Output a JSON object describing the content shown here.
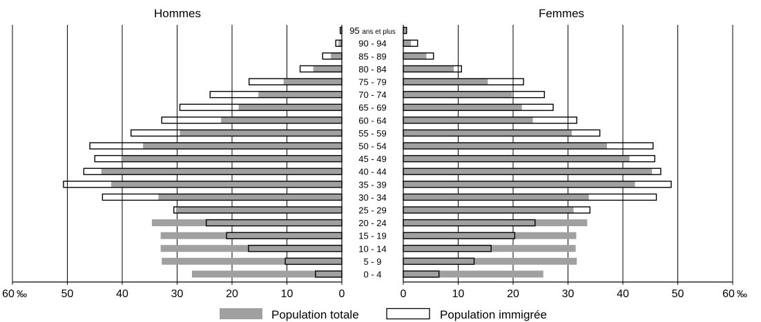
{
  "chart_data": {
    "type": "bar",
    "orientation": "horizontal",
    "subtype": "population-pyramid",
    "panels": [
      {
        "key": "men",
        "title": "Hommes"
      },
      {
        "key": "women",
        "title": "Femmes"
      }
    ],
    "categories": [
      "0 - 4",
      "5 - 9",
      "10 - 14",
      "15 - 19",
      "20 - 24",
      "25 - 29",
      "30 - 34",
      "35 - 39",
      "40 - 44",
      "45 - 49",
      "50 - 54",
      "55 - 59",
      "60 - 64",
      "65 - 69",
      "70 - 74",
      "75 - 79",
      "80 - 84",
      "85 - 89",
      "90 - 94"
    ],
    "top_category": {
      "number": "95",
      "suffix": "ans et plus"
    },
    "series": [
      {
        "name": "Population totale",
        "color": "#a0a0a0",
        "style": "filled",
        "men": [
          27.3,
          32.8,
          33.0,
          33.0,
          34.6,
          30.2,
          33.4,
          42.0,
          43.8,
          40.0,
          36.2,
          29.5,
          22.0,
          18.8,
          15.2,
          10.6,
          5.2,
          2.0,
          0.6,
          0.2
        ],
        "women": [
          25.5,
          31.6,
          31.4,
          31.5,
          33.5,
          31.0,
          33.8,
          42.2,
          45.3,
          41.2,
          37.1,
          30.7,
          23.6,
          21.6,
          19.8,
          15.4,
          9.2,
          4.2,
          1.4,
          0.6
        ]
      },
      {
        "name": "Population immigrée",
        "color": "#ffffff",
        "style": "outline",
        "men": [
          4.8,
          10.3,
          17.0,
          21.0,
          24.7,
          30.6,
          43.6,
          50.7,
          47.0,
          45.0,
          45.9,
          38.4,
          32.8,
          29.5,
          24.0,
          16.9,
          7.6,
          3.5,
          1.1,
          0.3
        ],
        "women": [
          6.5,
          12.9,
          16.0,
          20.3,
          24.0,
          34.0,
          46.1,
          48.8,
          46.9,
          45.8,
          45.5,
          35.8,
          31.6,
          27.3,
          25.7,
          21.9,
          10.6,
          5.5,
          2.6,
          0.6
        ]
      }
    ],
    "x_axis": {
      "ticks_men": [
        "60",
        "50",
        "40",
        "30",
        "20",
        "10",
        "0"
      ],
      "ticks_women": [
        "0",
        "10",
        "20",
        "30",
        "40",
        "50",
        "60"
      ],
      "unit": "‰",
      "range": [
        0,
        60
      ],
      "gridlines": true
    },
    "legend": {
      "position": "bottom",
      "items": [
        "Population totale",
        "Population immigrée"
      ]
    }
  }
}
